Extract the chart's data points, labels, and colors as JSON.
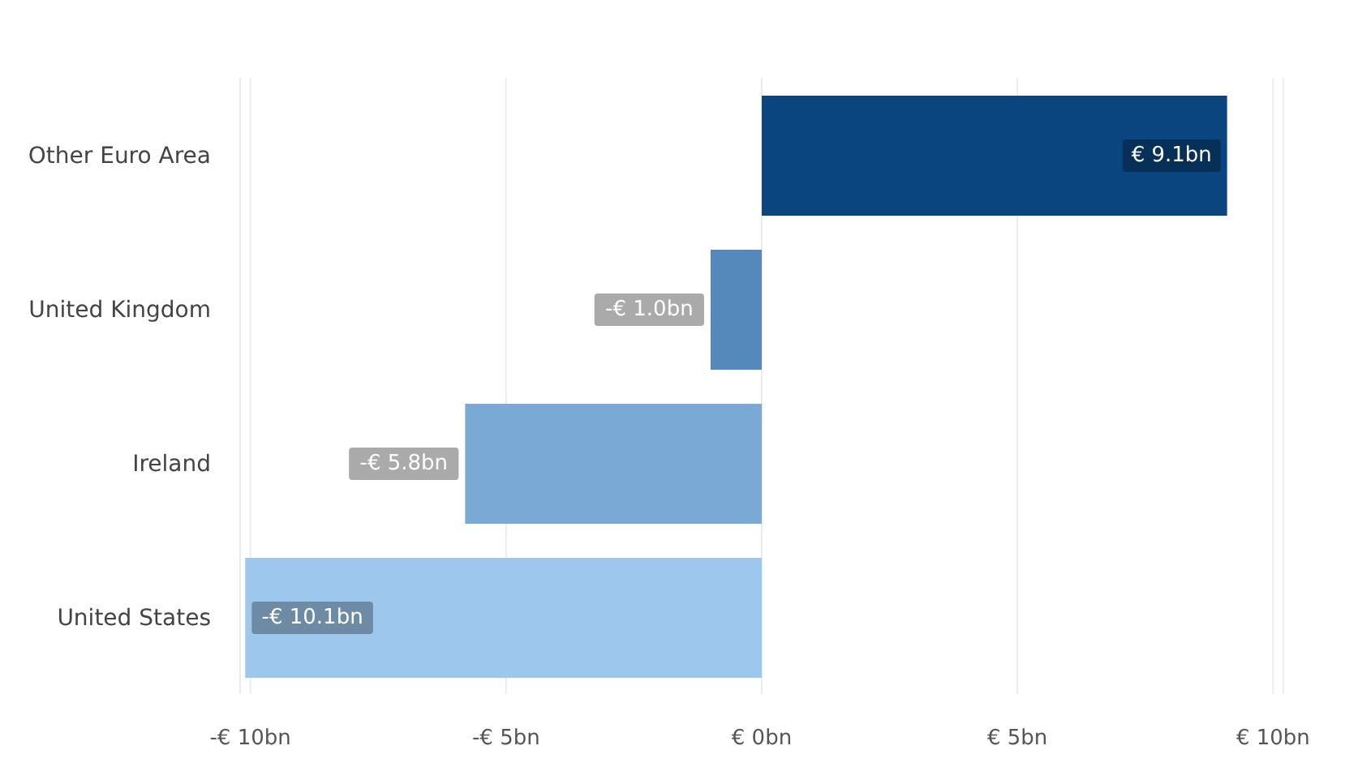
{
  "chart_data": {
    "type": "bar",
    "orientation": "horizontal",
    "categories": [
      "Other Euro Area",
      "United Kingdom",
      "Ireland",
      "United States"
    ],
    "values": [
      9.1,
      -1.0,
      -5.8,
      -10.1
    ],
    "colors": [
      "#0b4580",
      "#5588bb",
      "#7aa9d6",
      "#9ec7ee"
    ],
    "value_labels": [
      "€ 9.1bn",
      "-€ 1.0bn",
      "-€ 5.8bn",
      "-€ 10.1bn"
    ],
    "xlim": [
      -10.2,
      10.2
    ],
    "xticks": [
      {
        "value": -10,
        "label": "-€ 10bn"
      },
      {
        "value": -5,
        "label": "-€ 5bn"
      },
      {
        "value": 0,
        "label": "€ 0bn"
      },
      {
        "value": 5,
        "label": "€ 5bn"
      },
      {
        "value": 10,
        "label": "€ 10bn"
      }
    ],
    "grid": "x",
    "legend": false
  }
}
